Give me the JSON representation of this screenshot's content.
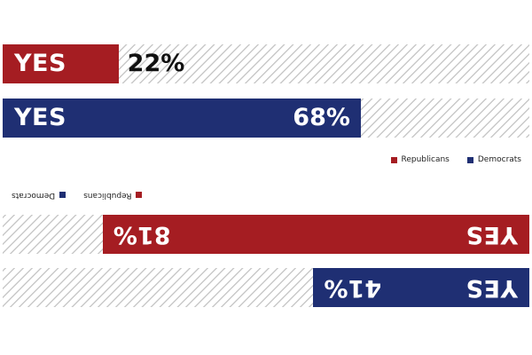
{
  "colors": {
    "republicans": "#a51d22",
    "democrats": "#1f2f73",
    "hatch": "#c9c9c9"
  },
  "chart_data": [
    {
      "type": "bar",
      "orientation": "horizontal",
      "xlim": [
        0,
        100
      ],
      "categories": [
        "Republicans",
        "Democrats"
      ],
      "bars": [
        {
          "series": "Republicans",
          "label": "YES",
          "value": 22,
          "value_text": "22%",
          "color": "#a51d22"
        },
        {
          "series": "Democrats",
          "label": "YES",
          "value": 68,
          "value_text": "68%",
          "color": "#1f2f73"
        }
      ],
      "legend": [
        {
          "name": "Republicans",
          "color": "#a51d22"
        },
        {
          "name": "Democrats",
          "color": "#1f2f73"
        }
      ],
      "legend_position": "bottom-right",
      "rotated": false
    },
    {
      "type": "bar",
      "orientation": "horizontal",
      "xlim": [
        0,
        100
      ],
      "categories": [
        "Democrats",
        "Republicans"
      ],
      "bars": [
        {
          "series": "Democrats",
          "label": "YES",
          "value": 41,
          "value_text": "41%",
          "color": "#1f2f73"
        },
        {
          "series": "Republicans",
          "label": "YES",
          "value": 81,
          "value_text": "81%",
          "color": "#a51d22"
        }
      ],
      "legend": [
        {
          "name": "Republicans",
          "color": "#a51d22"
        },
        {
          "name": "Democrats",
          "color": "#1f2f73"
        }
      ],
      "legend_position": "bottom-right",
      "rotated": true
    }
  ]
}
